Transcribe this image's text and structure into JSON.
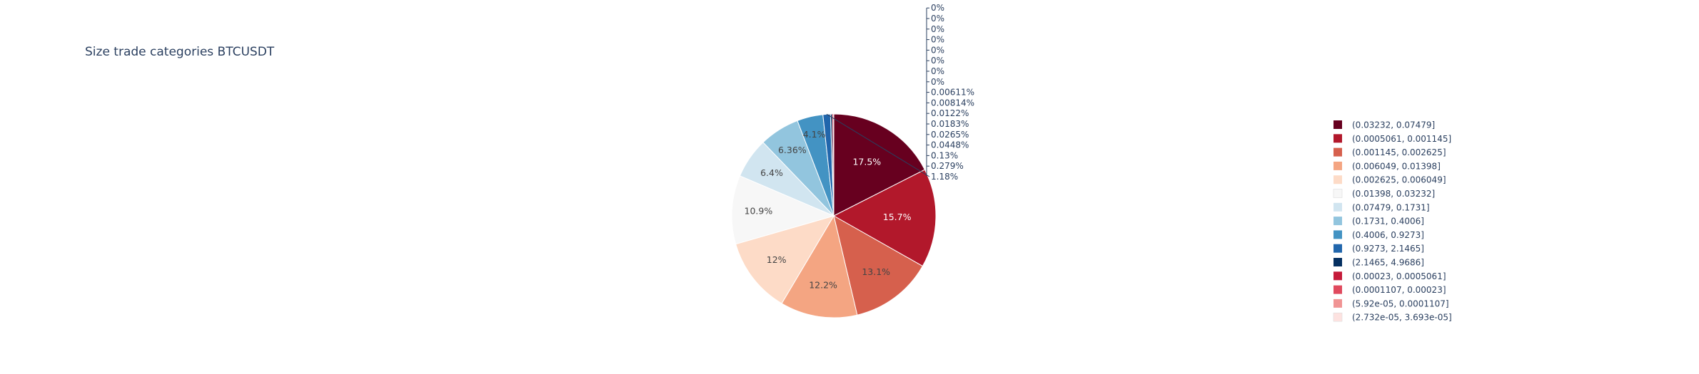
{
  "chart_data": {
    "type": "pie",
    "title": "Size trade categories BTCUSDT",
    "slices": [
      {
        "label": "(0.03232, 0.07479]",
        "value": 17.5,
        "text": "17.5%",
        "color": "#67001f"
      },
      {
        "label": "(0.0005061, 0.001145]",
        "value": 15.7,
        "text": "15.7%",
        "color": "#b2182b"
      },
      {
        "label": "(0.001145, 0.002625]",
        "value": 13.1,
        "text": "13.1%",
        "color": "#d6604d"
      },
      {
        "label": "(0.006049, 0.01398]",
        "value": 12.2,
        "text": "12.2%",
        "color": "#f4a582"
      },
      {
        "label": "(0.002625, 0.006049]",
        "value": 12.0,
        "text": "12%",
        "color": "#fddbc7"
      },
      {
        "label": "(0.01398, 0.03232]",
        "value": 10.9,
        "text": "10.9%",
        "color": "#f7f7f7"
      },
      {
        "label": "(0.07479, 0.1731]",
        "value": 6.4,
        "text": "6.4%",
        "color": "#d1e5f0"
      },
      {
        "label": "(0.1731, 0.4006]",
        "value": 6.36,
        "text": "6.36%",
        "color": "#92c5de"
      },
      {
        "label": "(0.4006, 0.9273]",
        "value": 4.1,
        "text": "4.1%",
        "color": "#4393c3"
      },
      {
        "label": "(0.9273, 2.1465]",
        "value": 1.18,
        "text": "1.18%",
        "color": "#2166ac"
      },
      {
        "label": "(2.1465, 4.9686]",
        "value": 0.279,
        "text": "0.279%",
        "color": "#053061"
      },
      {
        "label": "(0.00023, 0.0005061]",
        "value": 0.13,
        "text": "0.13%",
        "color": "#c51b3a"
      },
      {
        "label": "(0.0001107, 0.00023]",
        "value": 0.0448,
        "text": "0.0448%",
        "color": "#e04a5e"
      },
      {
        "label": "(5.92e-05, 0.0001107]",
        "value": 0.0265,
        "text": "0.0265%",
        "color": "#f09494"
      },
      {
        "label": "(2.732e-05, 3.693e-05]",
        "value": 0.0183,
        "text": "0.0183%",
        "color": "#fde2e0"
      },
      {
        "label": "",
        "value": 0.0122,
        "text": "0.0122%",
        "color": "#fbc9c5"
      },
      {
        "label": "",
        "value": 0.00814,
        "text": "0.00814%",
        "color": "#f6a8a4"
      },
      {
        "label": "",
        "value": 0.00611,
        "text": "0.00611%",
        "color": "#ee8a86"
      },
      {
        "label": "",
        "value": 0,
        "text": "0%",
        "color": "#cccccc"
      },
      {
        "label": "",
        "value": 0,
        "text": "0%",
        "color": "#cccccc"
      },
      {
        "label": "",
        "value": 0,
        "text": "0%",
        "color": "#cccccc"
      },
      {
        "label": "",
        "value": 0,
        "text": "0%",
        "color": "#cccccc"
      },
      {
        "label": "",
        "value": 0,
        "text": "0%",
        "color": "#cccccc"
      },
      {
        "label": "",
        "value": 0,
        "text": "0%",
        "color": "#cccccc"
      },
      {
        "label": "",
        "value": 0,
        "text": "0%",
        "color": "#cccccc"
      },
      {
        "label": "",
        "value": 0,
        "text": "0%",
        "color": "#cccccc"
      }
    ],
    "legend_visible_count": 15,
    "legend_placement": "right"
  }
}
